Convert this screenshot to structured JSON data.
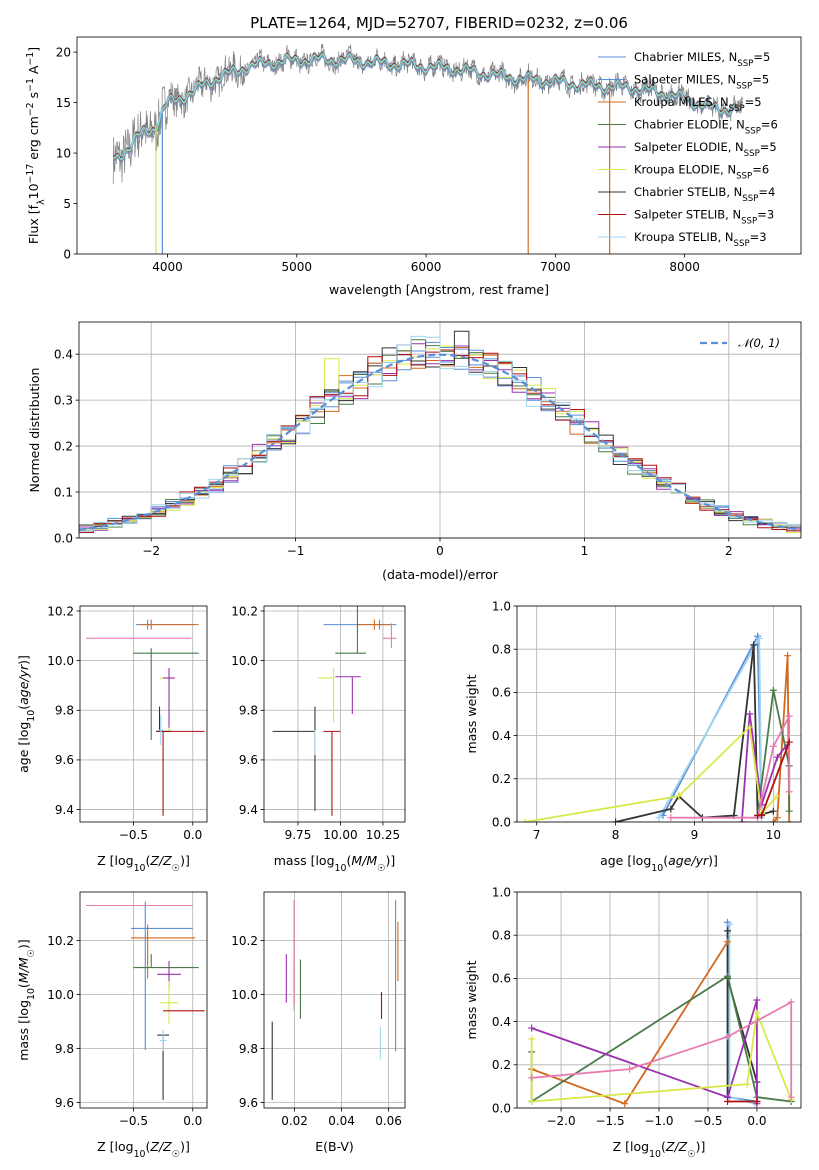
{
  "chart_data": [
    {
      "id": "spectrum",
      "type": "line",
      "title": "PLATE=1264, MJD=52707, FIBERID=0232, z=0.06",
      "xlabel": "wavelength [Angstrom, rest frame]",
      "ylabel": "Flux [f_λ10^-17 erg cm^-2 s^-1 A^-1]",
      "xlim": [
        3300,
        8900
      ],
      "ylim": [
        0,
        21.5
      ],
      "xticks": [
        4000,
        5000,
        6000,
        7000,
        8000
      ],
      "yticks": [
        0,
        5,
        10,
        15,
        20
      ],
      "data_color": "#808080",
      "model_color": "#7fd8e0",
      "continuum": {
        "x": [
          3600,
          3700,
          3800,
          3900,
          4000,
          4100,
          4200,
          4300,
          4400,
          4500,
          4600,
          4800,
          5000,
          5200,
          5400,
          5600,
          5800,
          6000,
          6200,
          6400,
          6600,
          6800,
          7000,
          7200,
          7400,
          7600,
          7800,
          8000,
          8200,
          8400
        ],
        "y": [
          9.5,
          10.5,
          12.0,
          12.5,
          15.0,
          15.5,
          16.0,
          17.0,
          17.5,
          18.0,
          18.5,
          19.0,
          19.2,
          19.3,
          19.2,
          19.0,
          18.8,
          18.6,
          18.4,
          18.0,
          17.6,
          17.3,
          17.1,
          16.8,
          16.6,
          16.5,
          16.0,
          15.4,
          14.5,
          14.3
        ]
      },
      "series": [
        {
          "name": "Chabrier MILES, N_SSP=5",
          "color": "#5b8ed8"
        },
        {
          "name": "Salpeter MILES, N_SSP=5",
          "color": "#5b8ed8"
        },
        {
          "name": "Kroupa MILES, N_SSP=5",
          "color": "#d2691e"
        },
        {
          "name": "Chabrier ELODIE, N_SSP=6",
          "color": "#4a7a4a"
        },
        {
          "name": "Salpeter ELODIE, N_SSP=5",
          "color": "#9b30b0"
        },
        {
          "name": "Kroupa ELODIE, N_SSP=6",
          "color": "#d8e84a"
        },
        {
          "name": "Chabrier STELIB, N_SSP=4",
          "color": "#333333"
        },
        {
          "name": "Salpeter STELIB, N_SSP=3",
          "color": "#b01010"
        },
        {
          "name": "Kroupa STELIB, N_SSP=3",
          "color": "#9fd4ec"
        }
      ],
      "legend": [
        {
          "pre": "Chabrier MILES, N",
          "sub": "SSP",
          "post": "=5"
        },
        {
          "pre": "Salpeter MILES, N",
          "sub": "SSP",
          "post": "=5"
        },
        {
          "pre": "Kroupa MILES, N",
          "sub": "SSP",
          "post": "=5"
        },
        {
          "pre": "Chabrier ELODIE, N",
          "sub": "SSP",
          "post": "=6"
        },
        {
          "pre": "Salpeter ELODIE, N",
          "sub": "SSP",
          "post": "=5"
        },
        {
          "pre": "Kroupa ELODIE, N",
          "sub": "SSP",
          "post": "=6"
        },
        {
          "pre": "Chabrier STELIB, N",
          "sub": "SSP",
          "post": "=4"
        },
        {
          "pre": "Salpeter STELIB, N",
          "sub": "SSP",
          "post": "=3"
        },
        {
          "pre": "Kroupa STELIB, N",
          "sub": "SSP",
          "post": "=3"
        }
      ],
      "legend_position": "top-right",
      "cutoffs": [
        {
          "x": 3910,
          "color": "#d8e84a"
        },
        {
          "x": 3960,
          "color": "#5b8ed8"
        },
        {
          "x": 6790,
          "color": "#d2691e"
        },
        {
          "x": 7420,
          "color": "#d2691e"
        }
      ]
    },
    {
      "id": "residuals",
      "type": "histogram",
      "xlabel": "(data-model)/error",
      "ylabel": "Normed distribution",
      "xlim": [
        -2.5,
        2.5
      ],
      "ylim": [
        0,
        0.47
      ],
      "xticks": [
        -2,
        -1,
        0,
        1,
        2
      ],
      "yticks": [
        0.0,
        0.1,
        0.2,
        0.3,
        0.4
      ],
      "bin_width": 0.1,
      "reference": {
        "label": "𝒩(0, 1)",
        "mu": 0,
        "sigma": 1,
        "color": "#5b8ed8"
      },
      "legend_position": "top-right",
      "anomalies": [
        {
          "x": 0.15,
          "y": 0.45,
          "color": "#333333"
        },
        {
          "x": -0.75,
          "y": 0.39,
          "color": "#d8e84a"
        },
        {
          "x": -0.25,
          "y": 0.42,
          "color": "#9b30b0"
        },
        {
          "x": 0.55,
          "y": 0.39,
          "color": "#e87bb0"
        },
        {
          "x": -0.95,
          "y": 0.15,
          "color": "#e87bb0"
        },
        {
          "x": 0.65,
          "y": 0.32,
          "color": "#e87bb0"
        }
      ]
    },
    {
      "id": "age_vs_Z",
      "type": "errorbar",
      "xlabel": "Z [log10(Z/Z☉)]",
      "ylabel": "age [log10(age/yr)]",
      "xlim": [
        -0.95,
        0.12
      ],
      "ylim": [
        9.35,
        10.22
      ],
      "xticks": [
        -0.5,
        0.0
      ],
      "yticks": [
        9.4,
        9.6,
        9.8,
        10.0,
        10.2
      ],
      "points": [
        {
          "x": -0.38,
          "xerr": [
            0.1,
            0.4
          ],
          "y": 10.145,
          "yerr": [
            0.02,
            0.02
          ],
          "color": "#5b8ed8"
        },
        {
          "x": -0.4,
          "xerr": [
            0.5,
            0.39
          ],
          "y": 10.09,
          "yerr": [
            0.0,
            0.0
          ],
          "color": "#e87bb0"
        },
        {
          "x": -0.35,
          "xerr": [
            0.1,
            0.4
          ],
          "y": 10.145,
          "yerr": [
            0.02,
            0.02
          ],
          "color": "#d2691e"
        },
        {
          "x": -0.35,
          "xerr": [
            0.15,
            0.4
          ],
          "y": 10.03,
          "yerr": [
            0.35,
            0.02
          ],
          "color": "#4a7a4a"
        },
        {
          "x": -0.2,
          "xerr": [
            0.08,
            0.05
          ],
          "y": 9.93,
          "yerr": [
            0.22,
            0.04
          ],
          "color": "#d8e84a"
        },
        {
          "x": -0.2,
          "xerr": [
            0.05,
            0.05
          ],
          "y": 9.93,
          "yerr": [
            0.2,
            0.04
          ],
          "color": "#9b30b0"
        },
        {
          "x": -0.28,
          "xerr": [
            0.03,
            0.1
          ],
          "y": 9.715,
          "yerr": [
            0.0,
            0.1
          ],
          "color": "#333333"
        },
        {
          "x": -0.25,
          "xerr": [
            0.05,
            0.35
          ],
          "y": 9.715,
          "yerr": [
            0.34,
            0.0
          ],
          "color": "#b01010"
        },
        {
          "x": -0.27,
          "xerr": [
            0.02,
            0.02
          ],
          "y": 9.72,
          "yerr": [
            0.06,
            0.06
          ],
          "color": "#9fd4ec"
        }
      ]
    },
    {
      "id": "age_vs_mass",
      "type": "errorbar",
      "xlabel": "mass [log10(M/M☉)]",
      "ylabel": "",
      "xlim": [
        9.55,
        10.38
      ],
      "ylim": [
        9.35,
        10.22
      ],
      "xticks": [
        9.75,
        10.0,
        10.25
      ],
      "yticks": [
        9.4,
        9.6,
        9.8,
        10.0,
        10.2
      ],
      "points": [
        {
          "x": 10.23,
          "xerr": [
            0.33,
            0.1
          ],
          "y": 10.145,
          "yerr": [
            0.02,
            0.02
          ],
          "color": "#5b8ed8"
        },
        {
          "x": 10.3,
          "xerr": [
            0.05,
            0.03
          ],
          "y": 10.09,
          "yerr": [
            0.04,
            0.06
          ],
          "color": "#e87bb0"
        },
        {
          "x": 10.2,
          "xerr": [
            0.1,
            0.1
          ],
          "y": 10.145,
          "yerr": [
            0.02,
            0.02
          ],
          "color": "#d2691e"
        },
        {
          "x": 10.1,
          "xerr": [
            0.13,
            0.05
          ],
          "y": 10.03,
          "yerr": [
            0.0,
            0.35
          ],
          "color": "#4a7a4a"
        },
        {
          "x": 9.96,
          "xerr": [
            0.09,
            0.0
          ],
          "y": 9.93,
          "yerr": [
            0.18,
            0.04
          ],
          "color": "#d8e84a"
        },
        {
          "x": 10.07,
          "xerr": [
            0.1,
            0.05
          ],
          "y": 9.935,
          "yerr": [
            0.15,
            0.0
          ],
          "color": "#9b30b0"
        },
        {
          "x": 9.85,
          "xerr": [
            0.25,
            0.0
          ],
          "y": 9.715,
          "yerr": [
            0.32,
            0.1
          ],
          "color": "#333333"
        },
        {
          "x": 9.95,
          "xerr": [
            0.05,
            0.05
          ],
          "y": 9.715,
          "yerr": [
            0.34,
            0.0
          ],
          "color": "#b01010"
        },
        {
          "x": 9.85,
          "xerr": [
            0.0,
            0.0
          ],
          "y": 9.72,
          "yerr": [
            0.1,
            0.0
          ],
          "color": "#9fd4ec"
        }
      ]
    },
    {
      "id": "massweight_vs_age",
      "type": "line",
      "xlabel": "age [log10(age/yr)]",
      "ylabel": "mass weight",
      "xlim": [
        6.75,
        10.35
      ],
      "ylim": [
        0,
        1.0
      ],
      "xticks": [
        7,
        8,
        9,
        10
      ],
      "yticks": [
        0.0,
        0.2,
        0.4,
        0.6,
        0.8,
        1.0
      ],
      "series": [
        {
          "color": "#5b8ed8",
          "x": [
            8.6,
            9.8,
            9.85
          ],
          "y": [
            0.03,
            0.86,
            0.03
          ]
        },
        {
          "color": "#9fd4ec",
          "x": [
            8.55,
            9.82,
            9.85
          ],
          "y": [
            0.02,
            0.85,
            0.02
          ]
        },
        {
          "color": "#333333",
          "x": [
            8.0,
            8.7,
            8.8,
            9.1,
            9.5,
            9.75,
            9.8,
            10.0
          ],
          "y": [
            0.0,
            0.06,
            0.12,
            0.02,
            0.03,
            0.82,
            0.03,
            0.05
          ]
        },
        {
          "color": "#d2691e",
          "x": [
            10.0,
            10.05,
            10.18,
            10.2
          ],
          "y": [
            0.0,
            0.02,
            0.77,
            0.0
          ]
        },
        {
          "color": "#4a7a4a",
          "x": [
            9.8,
            10.0,
            10.2,
            10.2
          ],
          "y": [
            0.03,
            0.61,
            0.26,
            0.05
          ]
        },
        {
          "color": "#9b30b0",
          "x": [
            9.6,
            9.7,
            9.85,
            10.05,
            10.2
          ],
          "y": [
            0.0,
            0.5,
            0.08,
            0.3,
            0.37
          ]
        },
        {
          "color": "#d8e84a",
          "x": [
            6.85,
            8.8,
            9.7,
            9.85,
            10.05
          ],
          "y": [
            0.0,
            0.12,
            0.44,
            0.04,
            0.12
          ]
        },
        {
          "color": "#e87bb0",
          "x": [
            8.7,
            9.8,
            10.0,
            10.2,
            10.2
          ],
          "y": [
            0.02,
            0.02,
            0.35,
            0.49,
            0.14
          ]
        },
        {
          "color": "#b01010",
          "x": [
            9.8,
            9.85,
            10.2
          ],
          "y": [
            0.03,
            0.03,
            0.37
          ]
        }
      ]
    },
    {
      "id": "mass_vs_Z",
      "type": "errorbar",
      "xlabel": "Z [log10(Z/Z☉)]",
      "ylabel": "mass [log10(M/M☉)]",
      "xlim": [
        -0.95,
        0.12
      ],
      "ylim": [
        9.58,
        10.38
      ],
      "xticks": [
        -0.5,
        0.0
      ],
      "yticks": [
        9.6,
        9.8,
        10.0,
        10.2
      ],
      "points": [
        {
          "x": -0.4,
          "xerr": [
            0.5,
            0.4
          ],
          "y": 10.33,
          "yerr": [
            0.0,
            0.0
          ],
          "color": "#e87bb0"
        },
        {
          "x": -0.4,
          "xerr": [
            0.12,
            0.4
          ],
          "y": 10.245,
          "yerr": [
            0.45,
            0.1
          ],
          "color": "#5b8ed8"
        },
        {
          "x": -0.38,
          "xerr": [
            0.14,
            0.4
          ],
          "y": 10.21,
          "yerr": [
            0.15,
            0.05
          ],
          "color": "#d2691e"
        },
        {
          "x": -0.35,
          "xerr": [
            0.15,
            0.4
          ],
          "y": 10.1,
          "yerr": [
            0.0,
            0.05
          ],
          "color": "#4a7a4a"
        },
        {
          "x": -0.2,
          "xerr": [
            0.1,
            0.1
          ],
          "y": 10.075,
          "yerr": [
            0.05,
            0.05
          ],
          "color": "#9b30b0"
        },
        {
          "x": -0.2,
          "xerr": [
            0.08,
            0.08
          ],
          "y": 9.97,
          "yerr": [
            0.08,
            0.08
          ],
          "color": "#d8e84a"
        },
        {
          "x": -0.2,
          "xerr": [
            0.05,
            0.3
          ],
          "y": 9.94,
          "yerr": [
            0.0,
            0.0
          ],
          "color": "#b01010"
        },
        {
          "x": -0.25,
          "xerr": [
            0.05,
            0.05
          ],
          "y": 9.85,
          "yerr": [
            0.24,
            0.0
          ],
          "color": "#333333"
        },
        {
          "x": -0.25,
          "xerr": [
            0.03,
            0.03
          ],
          "y": 9.83,
          "yerr": [
            0.04,
            0.04
          ],
          "color": "#9fd4ec"
        }
      ]
    },
    {
      "id": "mass_vs_EBV",
      "type": "errorbar",
      "xlabel": "E(B-V)",
      "ylabel": "",
      "xlim": [
        0.007,
        0.067
      ],
      "ylim": [
        9.58,
        10.38
      ],
      "xticks": [
        0.02,
        0.04,
        0.06
      ],
      "xtick_labels": [
        "0.02",
        "0.04",
        "0.06"
      ],
      "yticks": [
        9.6,
        9.8,
        10.0,
        10.2
      ],
      "points": [
        {
          "x": 0.0198,
          "y": 10.15,
          "yerr": [
            0.19,
            0.2
          ],
          "color": "#e87bb0"
        },
        {
          "x": 0.0165,
          "y": 10.06,
          "yerr": [
            0.09,
            0.09
          ],
          "color": "#9b30b0"
        },
        {
          "x": 0.0195,
          "y": 10.03,
          "yerr": [
            0.09,
            0.09
          ],
          "color": "#d8e84a"
        },
        {
          "x": 0.0225,
          "y": 10.02,
          "yerr": [
            0.11,
            0.11
          ],
          "color": "#4a7a4a"
        },
        {
          "x": 0.0105,
          "y": 9.76,
          "yerr": [
            0.15,
            0.14
          ],
          "color": "#333333"
        },
        {
          "x": 0.057,
          "y": 9.91,
          "yerr": [
            0.0,
            0.1
          ],
          "color": "#b01010"
        },
        {
          "x": 0.0565,
          "y": 9.82,
          "yerr": [
            0.06,
            0.06
          ],
          "color": "#9fd4ec"
        },
        {
          "x": 0.063,
          "y": 10.07,
          "yerr": [
            0.28,
            0.28
          ],
          "color": "#5b8ed8"
        },
        {
          "x": 0.064,
          "y": 10.16,
          "yerr": [
            0.11,
            0.11
          ],
          "color": "#d2691e"
        }
      ]
    },
    {
      "id": "massweight_vs_Z",
      "type": "line",
      "xlabel": "Z [log10(Z/Z☉)]",
      "ylabel": "mass weight",
      "xlim": [
        -2.45,
        0.45
      ],
      "ylim": [
        0,
        1.0
      ],
      "xticks": [
        -2.0,
        -1.5,
        -1.0,
        -0.5,
        0.0
      ],
      "yticks": [
        0.0,
        0.2,
        0.4,
        0.6,
        0.8,
        1.0
      ],
      "series": [
        {
          "color": "#5b8ed8",
          "x": [
            -0.3,
            -0.3,
            0.0
          ],
          "y": [
            0.86,
            0.05,
            0.03
          ]
        },
        {
          "color": "#9fd4ec",
          "x": [
            -0.28,
            -0.28,
            -0.02
          ],
          "y": [
            0.85,
            0.05,
            0.02
          ]
        },
        {
          "color": "#333333",
          "x": [
            -0.3,
            -0.3,
            -0.3,
            0.0,
            0.0
          ],
          "y": [
            0.82,
            0.05,
            0.6,
            0.12,
            0.03
          ]
        },
        {
          "color": "#d2691e",
          "x": [
            -2.3,
            -1.35,
            -0.3
          ],
          "y": [
            0.18,
            0.02,
            0.77
          ]
        },
        {
          "color": "#4a7a4a",
          "x": [
            -2.3,
            -2.3,
            -0.3,
            0.0,
            0.35
          ],
          "y": [
            0.26,
            0.03,
            0.61,
            0.05,
            0.03
          ]
        },
        {
          "color": "#9b30b0",
          "x": [
            -2.3,
            -0.3,
            0.0,
            0.0
          ],
          "y": [
            0.37,
            0.05,
            0.5,
            0.02
          ]
        },
        {
          "color": "#d8e84a",
          "x": [
            -2.3,
            -2.3,
            -0.1,
            0.0,
            0.35
          ],
          "y": [
            0.32,
            0.03,
            0.11,
            0.44,
            0.04
          ]
        },
        {
          "color": "#e87bb0",
          "x": [
            -2.3,
            -1.3,
            -0.3,
            0.35,
            0.35
          ],
          "y": [
            0.14,
            0.18,
            0.33,
            0.49,
            0.05
          ]
        },
        {
          "color": "#b01010",
          "x": [
            -0.3,
            0.0
          ],
          "y": [
            0.03,
            0.03
          ]
        }
      ]
    }
  ]
}
